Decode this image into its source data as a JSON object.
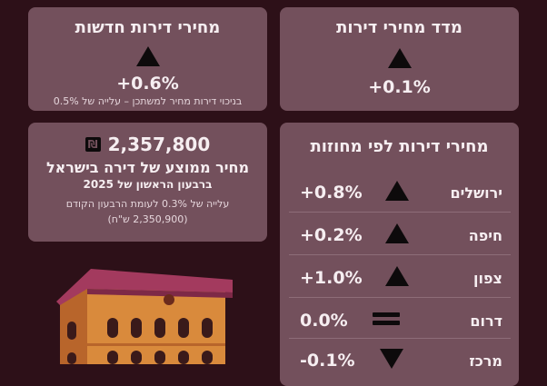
{
  "new_apartments": {
    "title": "מחירי דירות חדשות",
    "change": "+0.6%",
    "note": "בניכוי דירות מחיר למשתכן – עלייה של 0.5%"
  },
  "housing_index": {
    "title": "מדד מחירי דירות",
    "change": "+0.1%"
  },
  "average_price": {
    "amount": "2,357,800",
    "currency": "₪",
    "title": "מחיר ממוצע של דירה בישראל",
    "period": "ברבעון הראשון של 2025",
    "comparison": "עלייה של 0.3% לעומת הרבעון הקודם",
    "previous": "(2,350,900 ש\"ח)"
  },
  "regions": {
    "title": "מחירי דירות לפי מחוזות",
    "items": [
      {
        "name": "ירושלים",
        "trend": "up",
        "value": "+0.8%"
      },
      {
        "name": "חיפה",
        "trend": "up",
        "value": "+0.2%"
      },
      {
        "name": "צפון",
        "trend": "up",
        "value": "+1.0%"
      },
      {
        "name": "דרום",
        "trend": "equal",
        "value": "0.0%"
      },
      {
        "name": "מרכז",
        "trend": "down",
        "value": "-0.1%"
      }
    ]
  },
  "colors": {
    "background": "#2d1018",
    "card": "#73505c",
    "icon": "#0d0a0b",
    "building_wall": "#d98a3c",
    "building_roof": "#a33a5e"
  },
  "icons": [
    "triangle-up-icon",
    "triangle-down-icon",
    "equal-icon",
    "shekel-icon",
    "building-illustration"
  ]
}
